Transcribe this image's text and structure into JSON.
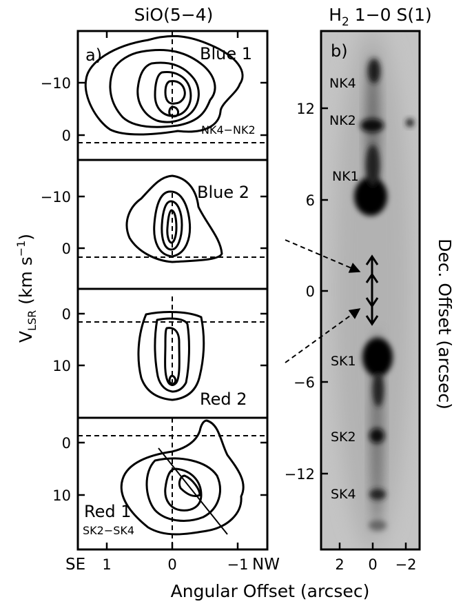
{
  "figure": {
    "panel_a_title": "SiO(5−4)",
    "panel_b_title_prefix": "H",
    "panel_b_title_sub": "2",
    "panel_b_title_suffix": " 1−0 S(1)",
    "panel_a_label": "a)",
    "panel_b_label": "b)",
    "ylabel_main": "V",
    "ylabel_sub": "LSR",
    "ylabel_unit_prefix": " (km s",
    "ylabel_unit_sup": "−1",
    "ylabel_unit_suffix": ")",
    "xlabel": "Angular Offset (arcsec)",
    "right_ylabel": "Dec. Offset (arcsec)",
    "se_label": "SE",
    "nw_label": "NW"
  },
  "pv_panels": [
    {
      "name": "Blue 1",
      "sublabel": "NK4−NK2",
      "yticks": [
        "−10",
        "0"
      ]
    },
    {
      "name": "Blue 2",
      "sublabel": "",
      "yticks": [
        "−10",
        "0"
      ]
    },
    {
      "name": "Red 2",
      "sublabel": "",
      "yticks": [
        "0",
        "10"
      ]
    },
    {
      "name": "Red 1",
      "sublabel": "SK2−SK4",
      "yticks": [
        "0",
        "10"
      ]
    }
  ],
  "pv_xticks": [
    "1",
    "0",
    "−1"
  ],
  "image_panel": {
    "knots_north": [
      "NK4",
      "NK2",
      "NK1"
    ],
    "knots_south": [
      "SK1",
      "SK2",
      "SK4"
    ],
    "yticks": [
      "12",
      "6",
      "0",
      "−6",
      "−12"
    ],
    "xticks": [
      "2",
      "0",
      "−2"
    ]
  }
}
